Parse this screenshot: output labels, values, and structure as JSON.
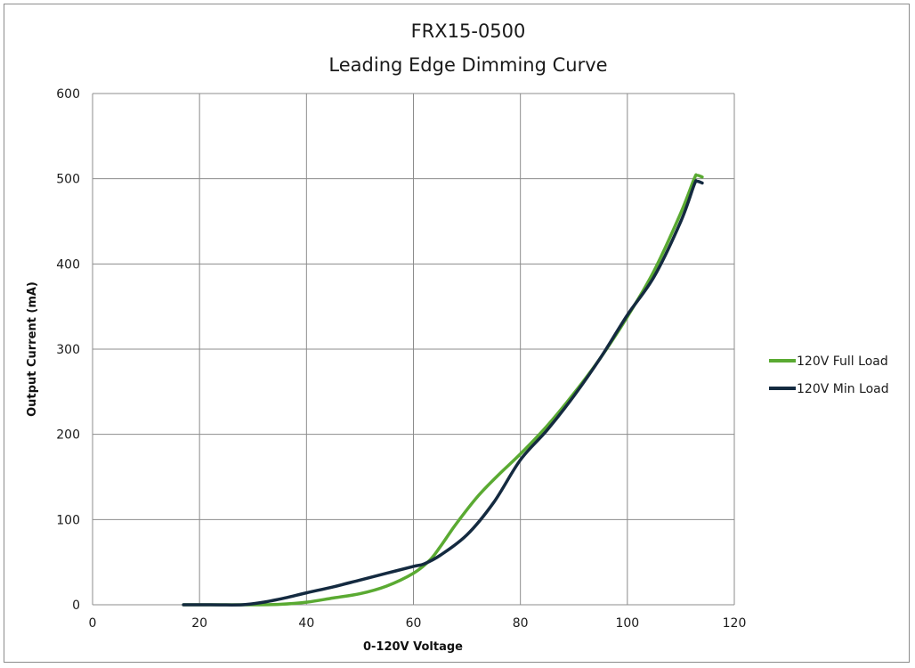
{
  "chart_data": {
    "type": "line",
    "title": "FRX15-0500",
    "subtitle": "Leading Edge Dimming Curve",
    "xlabel": "0-120V Voltage",
    "ylabel": "Output Current (mA)",
    "xlim": [
      0,
      120
    ],
    "ylim": [
      0,
      600
    ],
    "xticks": [
      0,
      20,
      40,
      60,
      80,
      100,
      120
    ],
    "yticks": [
      0,
      100,
      200,
      300,
      400,
      500,
      600
    ],
    "grid": true,
    "legend_position": "right",
    "series": [
      {
        "name": "120V Full Load",
        "color": "#5aaa32",
        "points": [
          [
            17,
            0
          ],
          [
            25,
            0
          ],
          [
            30,
            0
          ],
          [
            35,
            0.5
          ],
          [
            40,
            3
          ],
          [
            45,
            8
          ],
          [
            50,
            13
          ],
          [
            55,
            22
          ],
          [
            60,
            37
          ],
          [
            63,
            52
          ],
          [
            65,
            68
          ],
          [
            68,
            95
          ],
          [
            72,
            127
          ],
          [
            76,
            153
          ],
          [
            80,
            177
          ],
          [
            85,
            210
          ],
          [
            90,
            248
          ],
          [
            95,
            290
          ],
          [
            100,
            338
          ],
          [
            105,
            392
          ],
          [
            110,
            460
          ],
          [
            112.5,
            500
          ],
          [
            113,
            504
          ],
          [
            114,
            502
          ]
        ]
      },
      {
        "name": "120V Min Load",
        "color": "#142a40",
        "points": [
          [
            17,
            0
          ],
          [
            22,
            0
          ],
          [
            28,
            0
          ],
          [
            32,
            3
          ],
          [
            36,
            8
          ],
          [
            40,
            14
          ],
          [
            45,
            21
          ],
          [
            50,
            29
          ],
          [
            55,
            37
          ],
          [
            60,
            45
          ],
          [
            62,
            48
          ],
          [
            65,
            58
          ],
          [
            70,
            82
          ],
          [
            75,
            120
          ],
          [
            80,
            170
          ],
          [
            85,
            205
          ],
          [
            90,
            245
          ],
          [
            95,
            290
          ],
          [
            100,
            340
          ],
          [
            105,
            385
          ],
          [
            110,
            450
          ],
          [
            112.5,
            493
          ],
          [
            113,
            497
          ],
          [
            114,
            495
          ]
        ]
      }
    ]
  }
}
